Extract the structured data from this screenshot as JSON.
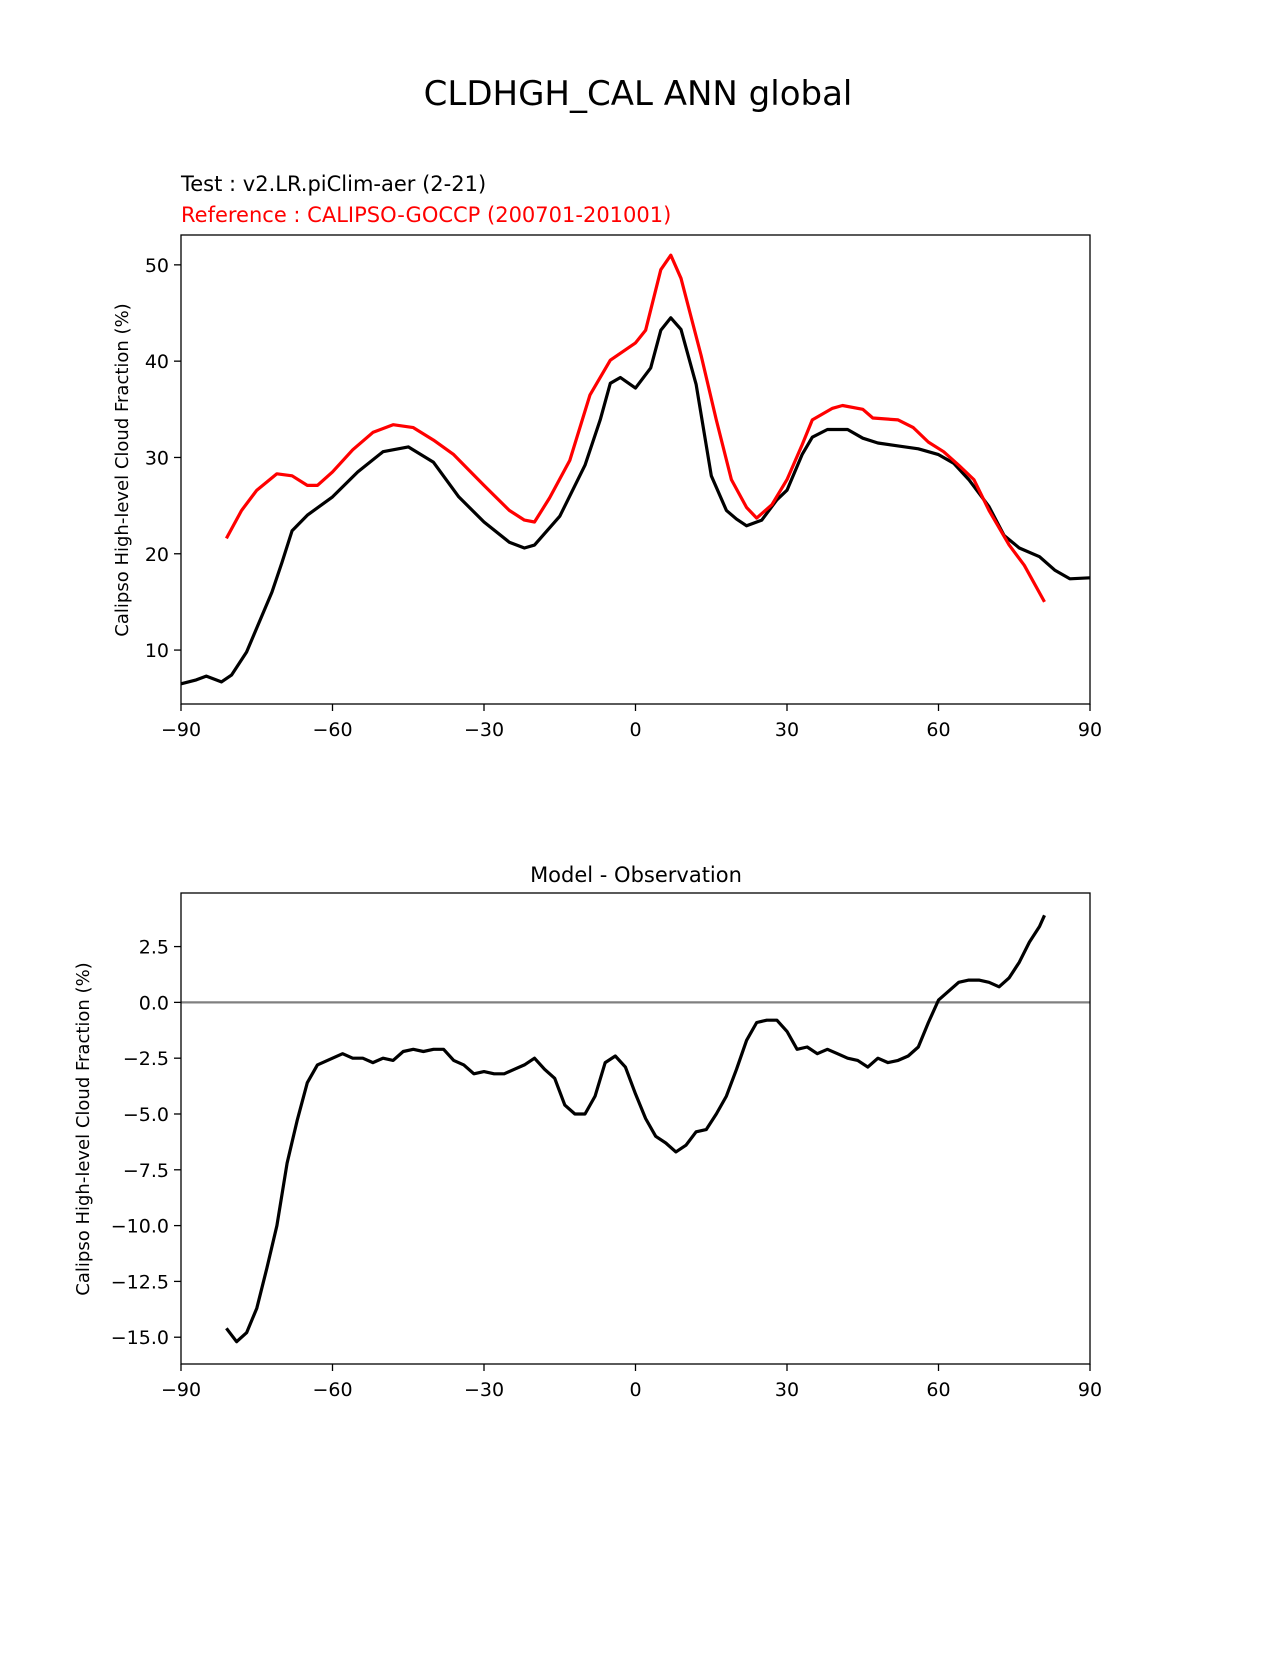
{
  "suptitle": "CLDHGH_CAL ANN global",
  "chart_data": [
    {
      "type": "line",
      "test_label": "Test : v2.LR.piClim-aer (2-21)",
      "reference_label": "Reference : CALIPSO-GOCCP (200701-201001)",
      "title": "",
      "xlabel": "",
      "ylabel": "Calipso High-level Cloud Fraction (%)",
      "xlim": [
        -90,
        90
      ],
      "ylim": [
        4.4,
        53.1
      ],
      "xticks": [
        -90,
        -60,
        -30,
        0,
        30,
        60,
        90
      ],
      "xtick_labels": [
        "−90",
        "−60",
        "−30",
        "0",
        "30",
        "60",
        "90"
      ],
      "yticks": [
        10,
        20,
        30,
        40,
        50
      ],
      "ytick_labels": [
        "10",
        "20",
        "30",
        "40",
        "50"
      ],
      "grid": false,
      "series": [
        {
          "name": "Test",
          "color": "#000000",
          "x": [
            -90,
            -87,
            -85,
            -82,
            -80,
            -77,
            -75,
            -72,
            -70,
            -68,
            -65,
            -60,
            -55,
            -50,
            -45,
            -40,
            -35,
            -30,
            -25,
            -22,
            -20,
            -15,
            -10,
            -7,
            -5,
            -3,
            0,
            3,
            5,
            7,
            9,
            12,
            15,
            18,
            20,
            22,
            25,
            28,
            30,
            33,
            35,
            38,
            42,
            45,
            48,
            52,
            56,
            60,
            63,
            66,
            70,
            73,
            76,
            80,
            83,
            86,
            90
          ],
          "y": [
            6.5,
            6.9,
            7.3,
            6.7,
            7.4,
            9.8,
            12.3,
            16.0,
            19.1,
            22.4,
            24.0,
            25.9,
            28.5,
            30.6,
            31.1,
            29.5,
            25.9,
            23.3,
            21.2,
            20.6,
            20.9,
            23.9,
            29.2,
            33.9,
            37.7,
            38.3,
            37.2,
            39.3,
            43.2,
            44.5,
            43.3,
            37.6,
            28.1,
            24.5,
            23.6,
            22.9,
            23.5,
            25.6,
            26.6,
            30.3,
            32.1,
            32.9,
            32.9,
            32.0,
            31.5,
            31.2,
            30.9,
            30.3,
            29.4,
            27.7,
            24.9,
            21.9,
            20.6,
            19.7,
            18.3,
            17.4,
            17.5
          ]
        },
        {
          "name": "Reference",
          "color": "#ff0000",
          "x": [
            -81,
            -78,
            -75,
            -71,
            -68,
            -65,
            -63,
            -60,
            -56,
            -52,
            -48,
            -44,
            -40,
            -36,
            -33,
            -30,
            -25,
            -22,
            -20,
            -17,
            -13,
            -9,
            -5,
            0,
            2,
            5,
            7,
            9,
            13,
            16,
            19,
            22,
            24,
            27,
            30,
            33,
            35,
            39,
            41,
            45,
            47,
            52,
            55,
            58,
            61,
            64,
            67,
            70,
            74,
            77,
            81
          ],
          "y": [
            21.6,
            24.5,
            26.6,
            28.3,
            28.1,
            27.1,
            27.1,
            28.5,
            30.8,
            32.6,
            33.4,
            33.1,
            31.8,
            30.3,
            28.7,
            27.1,
            24.5,
            23.5,
            23.3,
            25.8,
            29.7,
            36.5,
            40.1,
            41.9,
            43.2,
            49.5,
            51.0,
            48.6,
            40.6,
            33.9,
            27.7,
            24.8,
            23.7,
            25.1,
            27.7,
            31.3,
            33.9,
            35.1,
            35.4,
            35.0,
            34.1,
            33.9,
            33.1,
            31.6,
            30.6,
            29.2,
            27.7,
            24.5,
            20.9,
            18.8,
            15.0
          ]
        }
      ]
    },
    {
      "type": "line",
      "title": "Model - Observation",
      "xlabel": "",
      "ylabel": "Calipso High-level Cloud Fraction (%)",
      "xlim": [
        -90,
        90
      ],
      "ylim": [
        -16.2,
        4.9
      ],
      "xticks": [
        -90,
        -60,
        -30,
        0,
        30,
        60,
        90
      ],
      "xtick_labels": [
        "−90",
        "−60",
        "−30",
        "0",
        "30",
        "60",
        "90"
      ],
      "yticks": [
        2.5,
        0,
        -2.5,
        -5,
        -7.5,
        -10,
        -12.5,
        -15
      ],
      "ytick_labels": [
        "2.5",
        "0.0",
        "−2.5",
        "−5.0",
        "−7.5",
        "−10.0",
        "−12.5",
        "−15.0"
      ],
      "zero_line_color": "#808080",
      "grid": false,
      "series": [
        {
          "name": "Difference",
          "color": "#000000",
          "x": [
            -81,
            -79,
            -77,
            -75,
            -73,
            -71,
            -69,
            -67,
            -65,
            -63,
            -60,
            -58,
            -56,
            -54,
            -52,
            -50,
            -48,
            -46,
            -44,
            -42,
            -40,
            -38,
            -36,
            -34,
            -32,
            -30,
            -28,
            -26,
            -24,
            -22,
            -20,
            -18,
            -16,
            -14,
            -12,
            -10,
            -8,
            -6,
            -4,
            -2,
            0,
            2,
            4,
            6,
            8,
            10,
            12,
            14,
            16,
            18,
            20,
            22,
            24,
            26,
            28,
            30,
            32,
            34,
            36,
            38,
            40,
            42,
            44,
            46,
            48,
            50,
            52,
            54,
            56,
            58,
            60,
            62,
            64,
            66,
            68,
            70,
            72,
            74,
            76,
            78,
            80,
            81
          ],
          "y": [
            -14.6,
            -15.2,
            -14.8,
            -13.7,
            -11.9,
            -10.0,
            -7.2,
            -5.3,
            -3.6,
            -2.8,
            -2.5,
            -2.3,
            -2.5,
            -2.5,
            -2.7,
            -2.5,
            -2.6,
            -2.2,
            -2.1,
            -2.2,
            -2.1,
            -2.1,
            -2.6,
            -2.8,
            -3.2,
            -3.1,
            -3.2,
            -3.2,
            -3.0,
            -2.8,
            -2.5,
            -3.0,
            -3.4,
            -4.6,
            -5.0,
            -5.0,
            -4.2,
            -2.7,
            -2.4,
            -2.9,
            -4.1,
            -5.2,
            -6.0,
            -6.3,
            -6.7,
            -6.4,
            -5.8,
            -5.7,
            -5.0,
            -4.2,
            -3.0,
            -1.7,
            -0.9,
            -0.8,
            -0.8,
            -1.3,
            -2.1,
            -2.0,
            -2.3,
            -2.1,
            -2.3,
            -2.5,
            -2.6,
            -2.9,
            -2.5,
            -2.7,
            -2.6,
            -2.4,
            -2.0,
            -0.9,
            0.1,
            0.5,
            0.9,
            1.0,
            1.0,
            0.9,
            0.7,
            1.1,
            1.8,
            2.7,
            3.4,
            3.9
          ]
        }
      ]
    }
  ]
}
